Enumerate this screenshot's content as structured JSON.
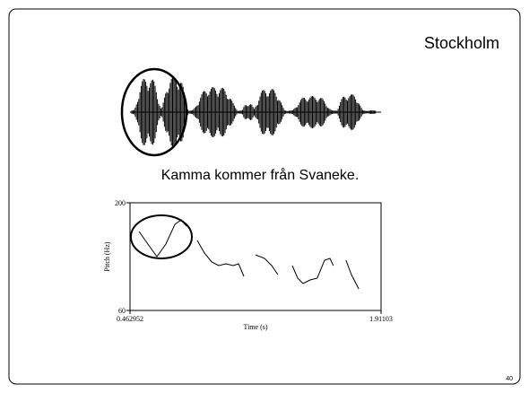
{
  "slide": {
    "title": "Stockholm",
    "caption": "Kamma kommer från Svaneke.",
    "page_number": "40"
  },
  "chart_data": {
    "type": "line",
    "xlabel": "Time (s)",
    "ylabel": "Pitch (Hz)",
    "xlim": [
      0.462952,
      1.91103
    ],
    "xticks": [
      0.462952,
      1.91103
    ],
    "ylim": [
      60,
      200
    ],
    "yticks": [
      60,
      200
    ],
    "x": [
      0.515,
      0.566,
      0.618,
      0.67,
      0.722,
      0.758,
      0.789,
      null,
      0.851,
      0.892,
      0.934,
      0.975,
      1.016,
      1.058,
      1.089,
      1.12,
      null,
      1.187,
      1.239,
      1.28,
      1.316,
      null,
      1.399,
      1.43,
      1.461,
      1.502,
      1.543,
      1.585,
      1.616,
      1.636,
      null,
      1.709,
      1.74,
      1.782
    ],
    "series": [
      {
        "color": "#000000",
        "values": [
          162.7,
          146.3,
          130,
          146.3,
          172,
          177.8,
          169.7,
          null,
          151,
          134.7,
          123,
          118.3,
          120.7,
          118.3,
          120.7,
          104.3,
          null,
          132.3,
          127.7,
          118.3,
          106.7,
          null,
          118.3,
          102,
          95,
          99.7,
          102,
          125.3,
          127.7,
          118.3,
          null,
          125.3,
          106.7,
          88
        ]
      }
    ]
  }
}
